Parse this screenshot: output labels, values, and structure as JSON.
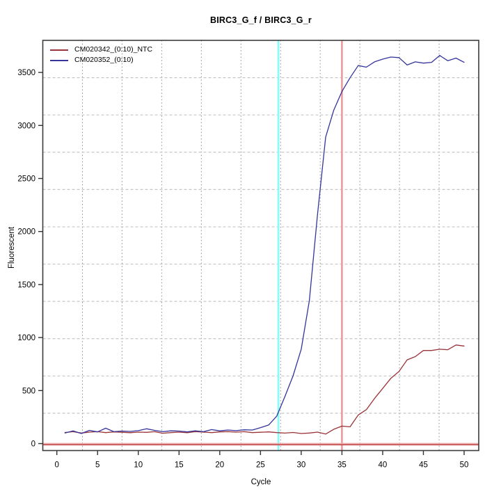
{
  "chart_data": {
    "type": "line",
    "title": "BIRC3_G_f / BIRC3_G_r",
    "xlabel": "Cycle",
    "ylabel": "Fluorescent",
    "xlim": [
      -2,
      52
    ],
    "ylim": [
      -80,
      3810
    ],
    "x_ticks": [
      0,
      5,
      10,
      15,
      20,
      25,
      30,
      35,
      40,
      45,
      50
    ],
    "y_ticks": [
      0,
      500,
      1000,
      1500,
      2000,
      2500,
      3000,
      3500
    ],
    "grid": {
      "h_color": "#c6c6c6",
      "v_color": "#8a8a8a",
      "h_cells": 11,
      "v_cells": 11,
      "on": true
    },
    "x": [
      1,
      2,
      3,
      4,
      5,
      6,
      7,
      8,
      9,
      10,
      11,
      12,
      13,
      14,
      15,
      16,
      17,
      18,
      19,
      20,
      21,
      22,
      23,
      24,
      25,
      26,
      27,
      28,
      29,
      30,
      31,
      32,
      33,
      34,
      35,
      36,
      37,
      38,
      39,
      40,
      41,
      42,
      43,
      44,
      45,
      46,
      47,
      48,
      49,
      50
    ],
    "series": [
      {
        "name": "CM020342_(0:10)_NTC",
        "color": "#9a3438",
        "values": [
          105,
          112,
          100,
          108,
          112,
          104,
          110,
          107,
          103,
          108,
          106,
          112,
          98,
          104,
          108,
          103,
          112,
          108,
          104,
          110,
          113,
          108,
          112,
          104,
          107,
          110,
          104,
          99,
          105,
          95,
          100,
          108,
          90,
          135,
          165,
          158,
          270,
          320,
          425,
          520,
          615,
          680,
          790,
          820,
          878,
          878,
          890,
          885,
          930,
          920
        ]
      },
      {
        "name": "CM020352_(0:10)",
        "color": "#34349b",
        "values": [
          100,
          120,
          95,
          125,
          110,
          145,
          112,
          118,
          115,
          122,
          140,
          125,
          112,
          120,
          118,
          110,
          120,
          112,
          132,
          120,
          128,
          122,
          130,
          128,
          150,
          175,
          260,
          445,
          640,
          890,
          1350,
          2160,
          2890,
          3145,
          3320,
          3450,
          3565,
          3550,
          3600,
          3625,
          3645,
          3640,
          3570,
          3600,
          3588,
          3595,
          3660,
          3610,
          3635,
          3595
        ]
      }
    ],
    "annotations": {
      "vlines": [
        {
          "x": 27.2,
          "color": "#80ffff",
          "name": "threshold-cycle-marker-cyan"
        },
        {
          "x": 35,
          "color": "#ec9a9a",
          "name": "threshold-cycle-marker-red"
        }
      ],
      "hlines": [
        {
          "y": 0,
          "color": "#e9a9a9",
          "name": "baseline-threshold-light"
        },
        {
          "y": -11,
          "color": "#c34a4a",
          "name": "baseline-threshold-dark"
        }
      ]
    },
    "legend": {
      "position": "top-left"
    }
  }
}
